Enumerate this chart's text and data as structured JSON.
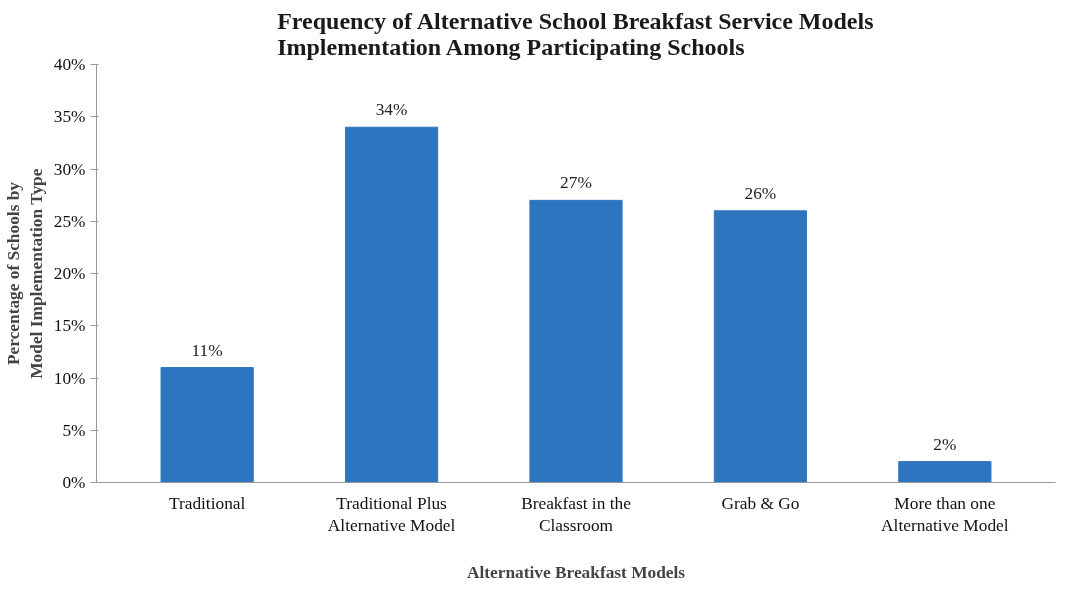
{
  "chart_data": {
    "type": "bar",
    "title": "Frequency of Alternative School Breakfast Service Models Implementation Among Participating Schools",
    "xlabel": "Alternative Breakfast Models",
    "ylabel": "Percentage of Schools by Model Implementation Type",
    "categories": [
      "Traditional",
      "Traditional Plus Alternative Model",
      "Breakfast in the Classroom",
      "Grab & Go",
      "More than one Alternative Model"
    ],
    "values": [
      11,
      34,
      27,
      26,
      2
    ],
    "value_labels": [
      "11%",
      "34%",
      "27%",
      "26%",
      "2%"
    ],
    "color": "#2e75c0",
    "ylim": [
      0,
      40
    ],
    "yticks": [
      {
        "value": 0,
        "label": "0%"
      },
      {
        "value": 5,
        "label": "5%"
      },
      {
        "value": 10,
        "label": "10%"
      },
      {
        "value": 15,
        "label": "15%"
      },
      {
        "value": 20,
        "label": "20%"
      },
      {
        "value": 25,
        "label": "25%"
      },
      {
        "value": 30,
        "label": "30%"
      },
      {
        "value": 35,
        "label": "35%"
      },
      {
        "value": 40,
        "label": "40%"
      }
    ],
    "grid": false
  }
}
